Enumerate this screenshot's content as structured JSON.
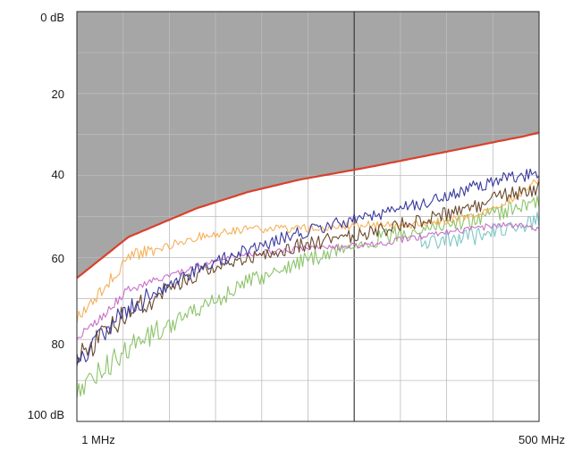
{
  "chart_data": {
    "type": "line",
    "title": "",
    "xlabel": "",
    "ylabel": "",
    "xscale": "log",
    "xlim": [
      1,
      500
    ],
    "ylim": [
      0,
      100
    ],
    "y_inverted": true,
    "grid": true,
    "legend": "none",
    "x_tick_labels": [
      "1 MHz",
      "500 MHz"
    ],
    "y_tick_labels": [
      "0 dB",
      "20",
      "40",
      "60",
      "80",
      "100 dB"
    ],
    "y_tick_values": [
      0,
      20,
      40,
      60,
      80,
      100
    ],
    "shaded_region": {
      "description": "gray area above limit curve",
      "color": "#a6a6a6"
    },
    "colors": {
      "limit": "#d9412b",
      "navy": "#3a3a9e",
      "brown": "#6b4a2e",
      "orange": "#f5b15a",
      "magenta": "#c870c8",
      "green": "#8cc46a",
      "cyan": "#7fc6c6",
      "grid_major": "#3a3a3a",
      "grid_minor": "#bcbcbc",
      "shade": "#a6a6a6"
    },
    "x": [
      1,
      2,
      5,
      10,
      20,
      50,
      100,
      200,
      300,
      400,
      500
    ],
    "series": [
      {
        "key": "limit",
        "values": [
          65,
          55,
          48,
          44,
          41,
          38,
          35.5,
          33,
          31.5,
          30.5,
          29.5
        ]
      },
      {
        "key": "navy",
        "values": [
          86,
          72,
          63,
          58,
          54,
          50,
          47,
          43,
          41,
          40,
          39
        ]
      },
      {
        "key": "brown",
        "values": [
          85,
          73,
          64,
          60,
          57,
          54,
          51,
          48,
          45,
          44,
          43
        ]
      },
      {
        "key": "orange",
        "values": [
          75,
          60,
          55,
          53,
          53,
          52,
          52,
          50,
          47,
          44,
          41
        ]
      },
      {
        "key": "magenta",
        "values": [
          80,
          68,
          62,
          59,
          58,
          57,
          55,
          53,
          52,
          52,
          53
        ]
      },
      {
        "key": "green",
        "values": [
          93,
          82,
          73,
          66,
          61,
          56,
          53,
          51,
          49,
          47,
          46
        ]
      },
      {
        "key": "cyan",
        "values": [
          null,
          null,
          null,
          null,
          null,
          null,
          56,
          55,
          53,
          52,
          51
        ]
      }
    ]
  }
}
